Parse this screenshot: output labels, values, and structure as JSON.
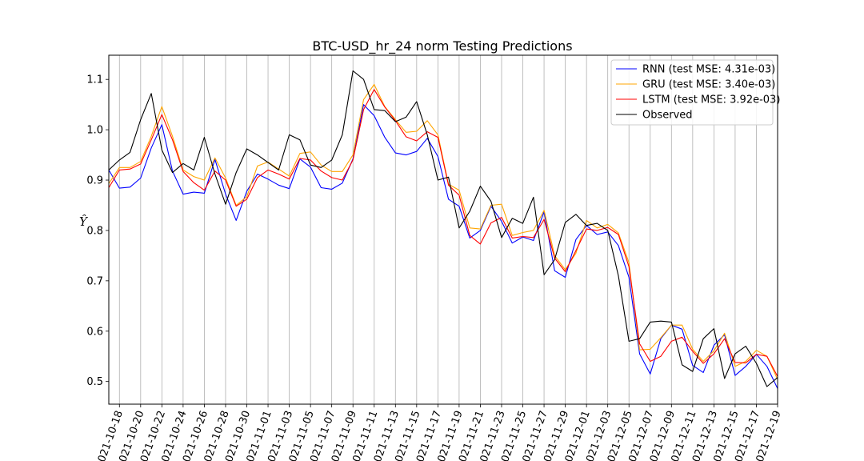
{
  "chart_data": {
    "type": "line",
    "title": "BTC-USD_hr_24 norm Testing Predictions",
    "ylabel": "Ŷ",
    "xlabel": "",
    "x_start": "2021-10-17",
    "x_end": "2021-12-19",
    "ylim": [
      0.455,
      1.148
    ],
    "yticks": [
      0.5,
      0.6,
      0.7,
      0.8,
      0.9,
      1.0,
      1.1
    ],
    "ytick_labels": [
      "0.5",
      "0.6",
      "0.7",
      "0.8",
      "0.9",
      "1.0",
      "1.1"
    ],
    "xticks": [
      "2021-10-18",
      "2021-10-20",
      "2021-10-22",
      "2021-10-24",
      "2021-10-26",
      "2021-10-28",
      "2021-10-30",
      "2021-11-01",
      "2021-11-03",
      "2021-11-05",
      "2021-11-07",
      "2021-11-09",
      "2021-11-11",
      "2021-11-13",
      "2021-11-15",
      "2021-11-17",
      "2021-11-19",
      "2021-11-21",
      "2021-11-23",
      "2021-11-25",
      "2021-11-27",
      "2021-11-29",
      "2021-12-01",
      "2021-12-03",
      "2021-12-05",
      "2021-12-07",
      "2021-12-09",
      "2021-12-11",
      "2021-12-13",
      "2021-12-15",
      "2021-12-17",
      "2021-12-19"
    ],
    "grid": "vertical",
    "legend_position": "top-right",
    "series": [
      {
        "name": "RNN (test MSE: 4.31e-03)",
        "color": "#0000ff",
        "values": [
          0.92,
          0.884,
          0.886,
          0.904,
          0.964,
          1.01,
          0.918,
          0.872,
          0.876,
          0.874,
          0.941,
          0.872,
          0.82,
          0.878,
          0.912,
          0.902,
          0.89,
          0.883,
          0.942,
          0.926,
          0.885,
          0.882,
          0.894,
          0.942,
          1.05,
          1.028,
          0.985,
          0.954,
          0.95,
          0.957,
          0.983,
          0.947,
          0.862,
          0.848,
          0.785,
          0.8,
          0.848,
          0.818,
          0.775,
          0.787,
          0.78,
          0.837,
          0.72,
          0.707,
          0.782,
          0.81,
          0.792,
          0.797,
          0.77,
          0.707,
          0.555,
          0.515,
          0.585,
          0.612,
          0.604,
          0.532,
          0.518,
          0.572,
          0.593,
          0.512,
          0.53,
          0.554,
          0.53,
          0.486
        ]
      },
      {
        "name": "GRU (test MSE: 3.40e-03)",
        "color": "#ffa500",
        "values": [
          0.893,
          0.925,
          0.925,
          0.937,
          0.987,
          1.046,
          0.987,
          0.92,
          0.907,
          0.9,
          0.944,
          0.904,
          0.85,
          0.867,
          0.928,
          0.936,
          0.922,
          0.908,
          0.953,
          0.956,
          0.93,
          0.917,
          0.917,
          0.95,
          1.06,
          1.09,
          1.046,
          1.02,
          0.995,
          0.997,
          1.018,
          0.99,
          0.892,
          0.88,
          0.805,
          0.803,
          0.85,
          0.852,
          0.79,
          0.796,
          0.8,
          0.84,
          0.75,
          0.722,
          0.755,
          0.82,
          0.805,
          0.812,
          0.795,
          0.736,
          0.563,
          0.564,
          0.587,
          0.612,
          0.612,
          0.564,
          0.54,
          0.561,
          0.596,
          0.53,
          0.54,
          0.562,
          0.55,
          0.504
        ]
      },
      {
        "name": "LSTM (test MSE: 3.92e-03)",
        "color": "#ff0000",
        "values": [
          0.885,
          0.92,
          0.922,
          0.932,
          0.98,
          1.03,
          0.98,
          0.917,
          0.895,
          0.88,
          0.918,
          0.9,
          0.848,
          0.862,
          0.905,
          0.92,
          0.912,
          0.902,
          0.943,
          0.94,
          0.918,
          0.905,
          0.9,
          0.94,
          1.04,
          1.08,
          1.045,
          1.018,
          0.986,
          0.978,
          0.996,
          0.985,
          0.89,
          0.87,
          0.79,
          0.773,
          0.815,
          0.826,
          0.785,
          0.788,
          0.786,
          0.822,
          0.745,
          0.718,
          0.76,
          0.803,
          0.8,
          0.806,
          0.792,
          0.728,
          0.575,
          0.54,
          0.55,
          0.58,
          0.588,
          0.56,
          0.536,
          0.555,
          0.585,
          0.538,
          0.537,
          0.554,
          0.55,
          0.51
        ]
      },
      {
        "name": "Observed",
        "color": "#000000",
        "values": [
          0.92,
          0.94,
          0.955,
          1.02,
          1.072,
          0.96,
          0.915,
          0.933,
          0.92,
          0.985,
          0.912,
          0.852,
          0.915,
          0.962,
          0.95,
          0.935,
          0.92,
          0.99,
          0.98,
          0.93,
          0.925,
          0.94,
          0.99,
          1.117,
          1.1,
          1.04,
          1.038,
          1.016,
          1.025,
          1.056,
          0.99,
          0.9,
          0.906,
          0.805,
          0.838,
          0.888,
          0.858,
          0.786,
          0.824,
          0.814,
          0.866,
          0.712,
          0.742,
          0.816,
          0.832,
          0.81,
          0.814,
          0.8,
          0.71,
          0.58,
          0.585,
          0.618,
          0.62,
          0.618,
          0.533,
          0.52,
          0.585,
          0.605,
          0.506,
          0.555,
          0.57,
          0.536,
          0.49,
          0.508
        ]
      }
    ]
  }
}
